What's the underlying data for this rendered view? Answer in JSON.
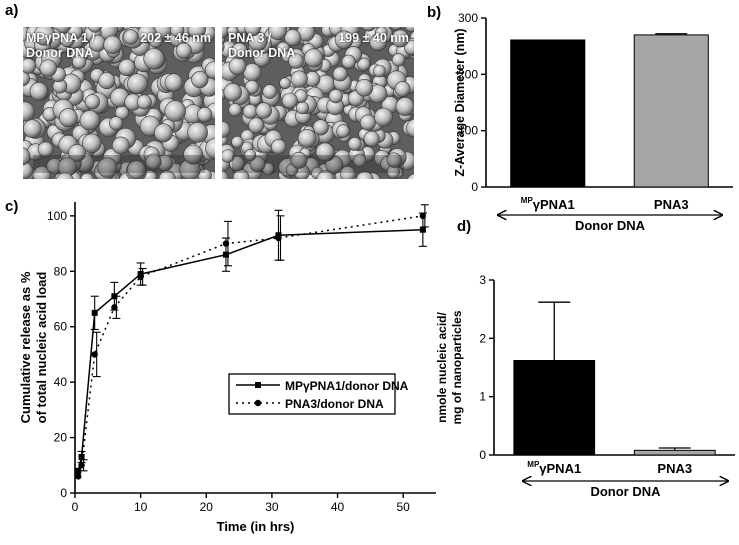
{
  "panels": {
    "a": {
      "label": "a)",
      "images": [
        {
          "caption_line1": "MPγPNA 1 /",
          "caption_line2": "Donor DNA",
          "size": "202 ± 46 nm"
        },
        {
          "caption_line1": "PNA 3 /",
          "caption_line2": "Donor DNA",
          "size": "199 ± 40 nm"
        }
      ]
    },
    "b": {
      "label": "b)"
    },
    "c": {
      "label": "c)"
    },
    "d": {
      "label": "d)"
    }
  },
  "colors": {
    "black_bar": "#000000",
    "grey_bar": "#a6a6a6"
  },
  "chart_data": [
    {
      "id": "b",
      "type": "bar",
      "ylabel": "Z-Average Diameter (nm)",
      "ylim": [
        0,
        300
      ],
      "yticks": [
        0,
        100,
        200,
        300
      ],
      "categories": [
        {
          "sup": "MP",
          "main": "γPNA1"
        },
        {
          "sup": "",
          "main": "PNA3"
        }
      ],
      "values": [
        261,
        270
      ],
      "errors": [
        0,
        2
      ],
      "bar_colors": [
        "#000000",
        "#a6a6a6"
      ],
      "group_label": "Donor DNA"
    },
    {
      "id": "c",
      "type": "line",
      "xlabel": "Time (in hrs)",
      "ylabel_line1": "Cumulative release as %",
      "ylabel_line2": "of total nucleic acid load",
      "xlim": [
        0,
        55
      ],
      "ylim": [
        0,
        105
      ],
      "xticks": [
        0,
        10,
        20,
        30,
        40,
        50
      ],
      "yticks": [
        0,
        20,
        40,
        60,
        80,
        100
      ],
      "legend_position": "center-right",
      "series": [
        {
          "name": "MPγPNA1/donor DNA",
          "marker": "square",
          "line": "solid",
          "x": [
            0.5,
            1,
            3,
            6,
            10,
            23,
            31,
            53
          ],
          "y": [
            8,
            13,
            65,
            71,
            79,
            86,
            93,
            95
          ],
          "err": [
            0,
            2,
            6,
            5,
            4,
            6,
            9,
            6
          ]
        },
        {
          "name": "PNA3/donor DNA",
          "marker": "circle",
          "line": "dotted",
          "x": [
            0.5,
            1,
            3,
            6,
            10,
            23,
            31,
            53
          ],
          "y": [
            6,
            10,
            50,
            67,
            78,
            90,
            92,
            100
          ],
          "err": [
            0,
            2,
            8,
            4,
            3,
            8,
            8,
            4
          ]
        }
      ]
    },
    {
      "id": "d",
      "type": "bar",
      "ylabel_line1": "nmole nucleic acid/",
      "ylabel_line2": "mg of nanoparticles",
      "ylim": [
        0,
        3
      ],
      "yticks": [
        0,
        1,
        2,
        3
      ],
      "categories": [
        {
          "sup": "MP",
          "main": "γPNA1"
        },
        {
          "sup": "",
          "main": "PNA3"
        }
      ],
      "values": [
        1.62,
        0.08
      ],
      "errors": [
        1.0,
        0.04
      ],
      "bar_colors": [
        "#000000",
        "#a6a6a6"
      ],
      "group_label": "Donor DNA"
    }
  ]
}
